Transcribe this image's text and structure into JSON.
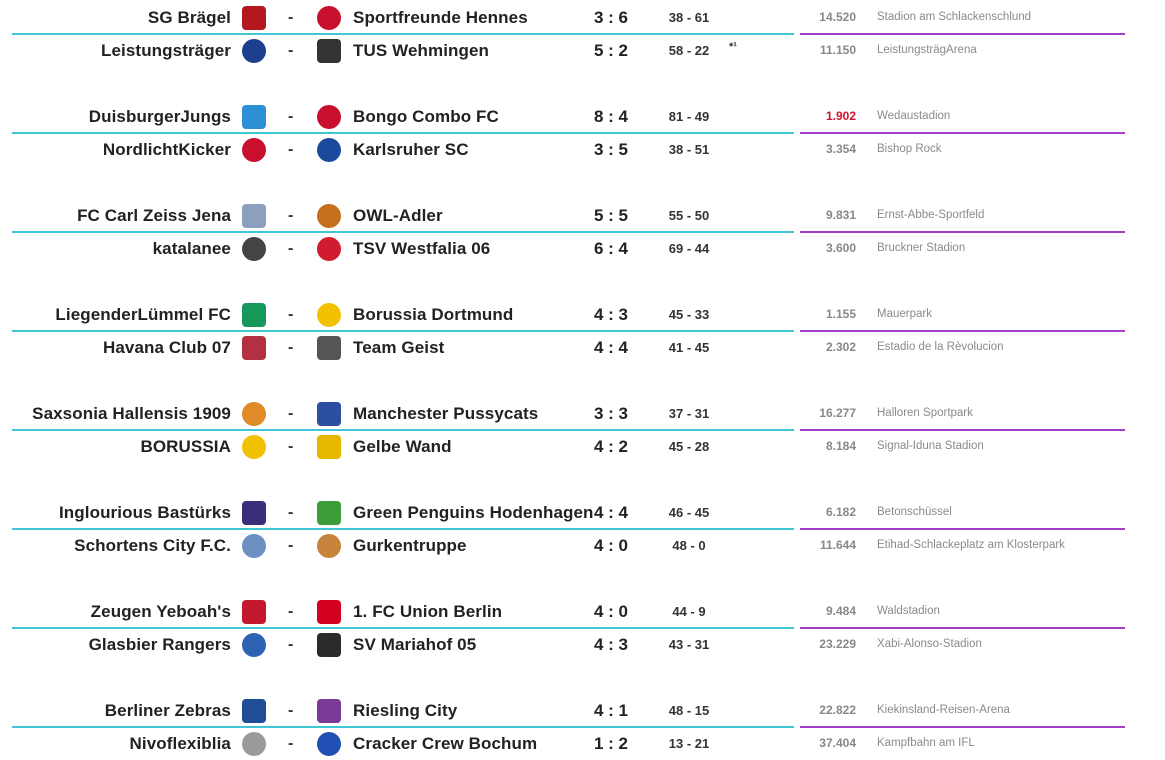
{
  "colors": {
    "separator_left": "#3fc7d6",
    "separator_right": "#a33fc4",
    "attendance_low": "#d0142c"
  },
  "dash": "-",
  "groups": [
    {
      "matches": [
        {
          "home": "SG Brägel",
          "home_icon": "sg-braegel-crest-icon",
          "away": "Sportfreunde Hennes",
          "away_icon": "sportfreunde-hennes-crest-icon",
          "score": "3 : 6",
          "points": "38 - 61",
          "note": "",
          "attendance": "14.520",
          "stadium": "Stadion am Schlackenschlund"
        },
        {
          "home": "Leistungsträger",
          "home_icon": "leistungstraeger-crest-icon",
          "away": "TUS Wehmingen",
          "away_icon": "tus-wehmingen-crest-icon",
          "score": "5 : 2",
          "points": "58 - 22",
          "note": "*¹",
          "attendance": "11.150",
          "stadium": "LeistungsträgArena"
        }
      ]
    },
    {
      "matches": [
        {
          "home": "DuisburgerJungs",
          "home_icon": "duisburger-jungs-crest-icon",
          "away": "Bongo Combo FC",
          "away_icon": "bongo-combo-crest-icon",
          "score": "8 : 4",
          "points": "81 - 49",
          "note": "",
          "attendance": "1.902",
          "attendance_low": true,
          "stadium": "Wedaustadion"
        },
        {
          "home": "NordlichtKicker",
          "home_icon": "nordlichtkicker-crest-icon",
          "away": "Karlsruher SC",
          "away_icon": "karlsruher-sc-crest-icon",
          "score": "3 : 5",
          "points": "38 - 51",
          "note": "",
          "attendance": "3.354",
          "stadium": "Bishop Rock"
        }
      ]
    },
    {
      "matches": [
        {
          "home": "FC Carl Zeiss Jena",
          "home_icon": "carl-zeiss-jena-crest-icon",
          "away": "OWL-Adler",
          "away_icon": "owl-adler-crest-icon",
          "score": "5 : 5",
          "points": "55 - 50",
          "note": "",
          "attendance": "9.831",
          "stadium": "Ernst-Abbe-Sportfeld"
        },
        {
          "home": "katalanee",
          "home_icon": "katalanee-crest-icon",
          "away": "TSV Westfalia 06",
          "away_icon": "tsv-westfalia-crest-icon",
          "score": "6 : 4",
          "points": "69 - 44",
          "note": "",
          "attendance": "3.600",
          "stadium": "Bruckner Stadion"
        }
      ]
    },
    {
      "matches": [
        {
          "home": "LiegenderLümmel FC",
          "home_icon": "liegender-luemmel-crest-icon",
          "away": "Borussia Dortmund",
          "away_icon": "borussia-dortmund-crest-icon",
          "score": "4 : 3",
          "points": "45 - 33",
          "note": "",
          "attendance": "1.155",
          "stadium": "Mauerpark"
        },
        {
          "home": "Havana Club 07",
          "home_icon": "havana-club-crest-icon",
          "away": "Team Geist",
          "away_icon": "team-geist-crest-icon",
          "score": "4 : 4",
          "points": "41 - 45",
          "note": "",
          "attendance": "2.302",
          "stadium": "Estadio de la Rèvolucion"
        }
      ]
    },
    {
      "matches": [
        {
          "home": "Saxsonia Hallensis 1909",
          "home_icon": "saxsonia-hallensis-crest-icon",
          "away": "Manchester Pussycats",
          "away_icon": "manchester-pussycats-crest-icon",
          "score": "3 : 3",
          "points": "37 - 31",
          "note": "",
          "attendance": "16.277",
          "stadium": "Halloren Sportpark"
        },
        {
          "home": "BORUSSIA",
          "home_icon": "borussia-crest-icon",
          "away": "Gelbe Wand",
          "away_icon": "gelbe-wand-crest-icon",
          "score": "4 : 2",
          "points": "45 - 28",
          "note": "",
          "attendance": "8.184",
          "stadium": "Signal-Iduna Stadion"
        }
      ]
    },
    {
      "matches": [
        {
          "home": "Inglourious Bastürks",
          "home_icon": "inglourious-basturks-crest-icon",
          "away": "Green Penguins Hodenhagen",
          "away_icon": "green-penguins-crest-icon",
          "score": "4 : 4",
          "points": "46 - 45",
          "note": "",
          "attendance": "6.182",
          "stadium": "Betonschüssel"
        },
        {
          "home": "Schortens City F.C.",
          "home_icon": "schortens-city-crest-icon",
          "away": "Gurkentruppe",
          "away_icon": "gurkentruppe-crest-icon",
          "score": "4 : 0",
          "points": "48 - 0",
          "note": "",
          "attendance": "11.644",
          "stadium": "Etihad-Schlackeplatz am Klosterpark"
        }
      ]
    },
    {
      "matches": [
        {
          "home": "Zeugen Yeboah's",
          "home_icon": "zeugen-yeboahs-crest-icon",
          "away": "1. FC Union Berlin",
          "away_icon": "union-berlin-crest-icon",
          "score": "4 : 0",
          "points": "44 - 9",
          "note": "",
          "attendance": "9.484",
          "stadium": "Waldstadion"
        },
        {
          "home": "Glasbier Rangers",
          "home_icon": "glasbier-rangers-crest-icon",
          "away": "SV Mariahof 05",
          "away_icon": "sv-mariahof-crest-icon",
          "score": "4 : 3",
          "points": "43 - 31",
          "note": "",
          "attendance": "23.229",
          "stadium": "Xabi-Alonso-Stadion"
        }
      ]
    },
    {
      "matches": [
        {
          "home": "Berliner Zebras",
          "home_icon": "berliner-zebras-crest-icon",
          "away": "Riesling City",
          "away_icon": "riesling-city-crest-icon",
          "score": "4 : 1",
          "points": "48 - 15",
          "note": "",
          "attendance": "22.822",
          "stadium": "Kiekinsland-Reisen-Arena"
        },
        {
          "home": "Nivoflexiblia",
          "home_icon": "nivoflexiblia-crest-icon",
          "away": "Cracker Crew Bochum",
          "away_icon": "cracker-crew-bochum-crest-icon",
          "score": "1 : 2",
          "points": "13 - 21",
          "note": "",
          "attendance": "37.404",
          "stadium": "Kampfbahn am IFL"
        }
      ]
    }
  ]
}
